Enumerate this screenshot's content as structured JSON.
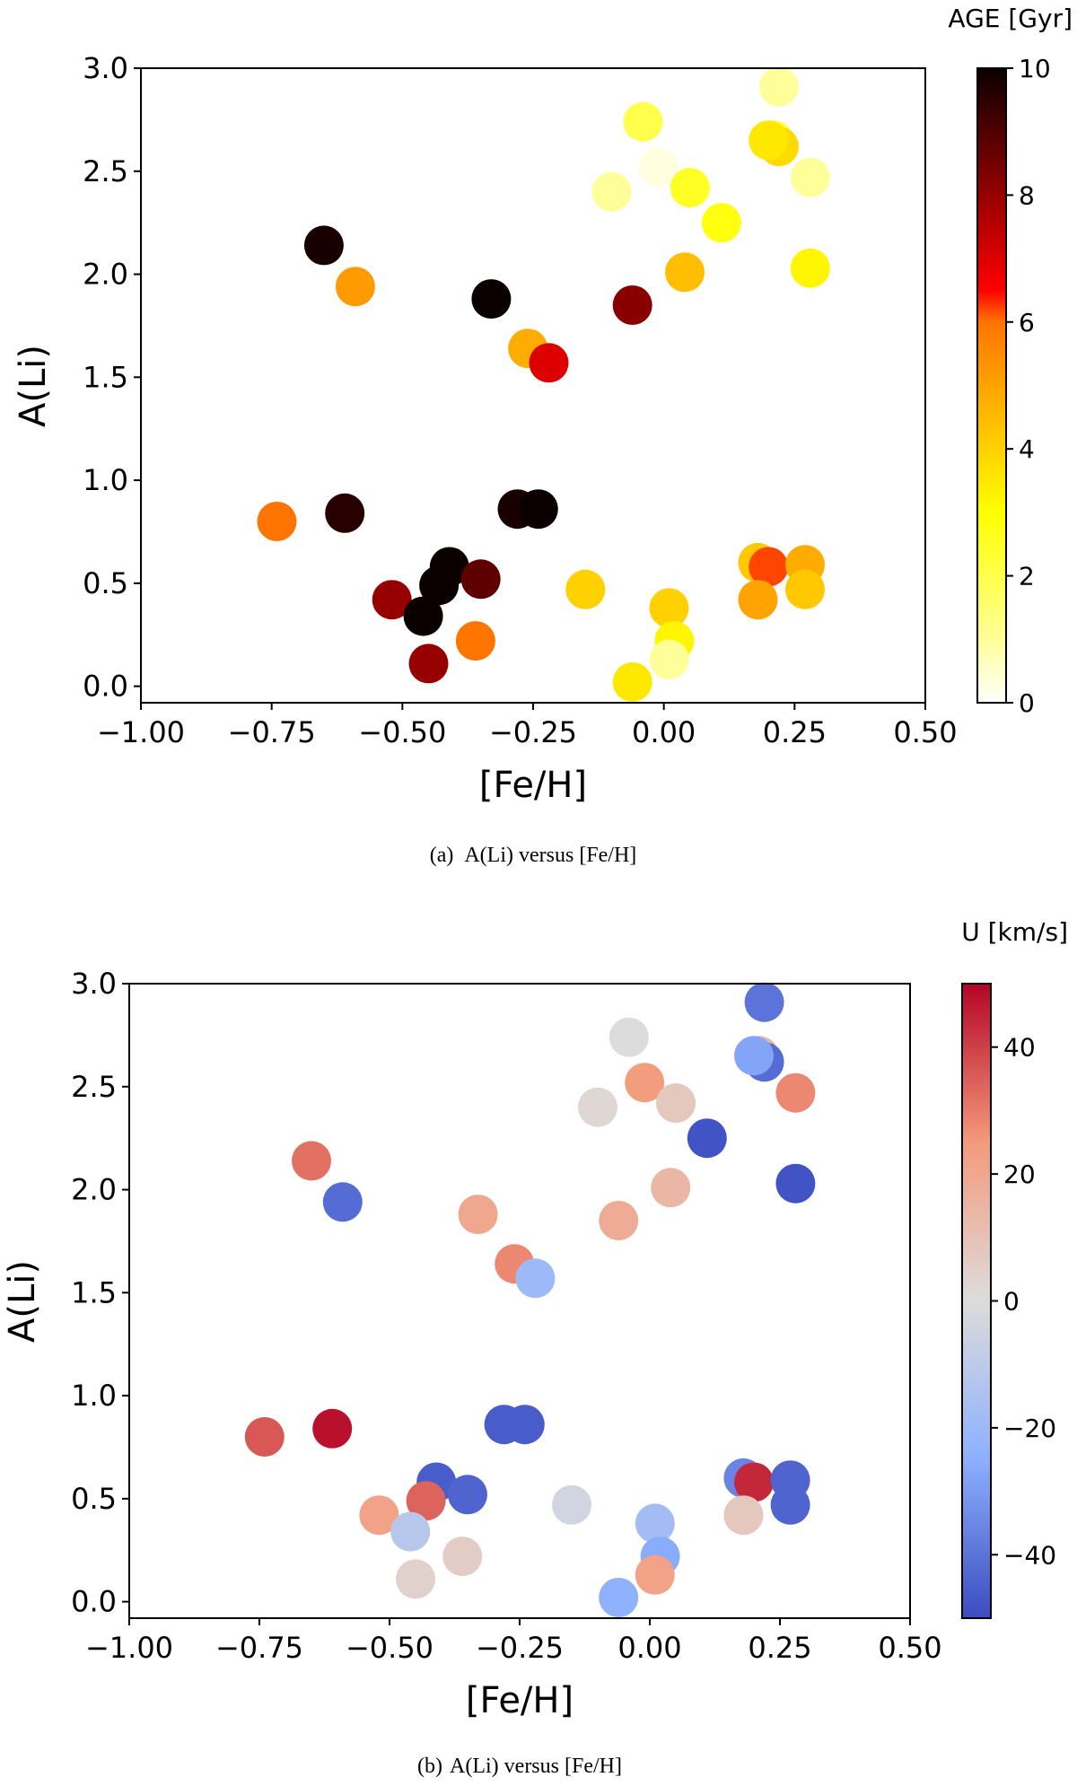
{
  "chart_data": [
    {
      "type": "scatter",
      "panel_label": "(a)",
      "caption": "A(Li) versus [Fe/H]",
      "xlabel": "[Fe/H]",
      "ylabel": "A(Li)",
      "xlim": [
        -1.0,
        0.5
      ],
      "ylim": [
        -0.08,
        3.0
      ],
      "xticks": [
        -1.0,
        -0.75,
        -0.5,
        -0.25,
        0.0,
        0.25,
        0.5
      ],
      "xtick_labels": [
        "−1.00",
        "−0.75",
        "−0.50",
        "−0.25",
        "0.00",
        "0.25",
        "0.50"
      ],
      "yticks": [
        0.0,
        0.5,
        1.0,
        1.5,
        2.0,
        2.5,
        3.0
      ],
      "ytick_labels": [
        "0.0",
        "0.5",
        "1.0",
        "1.5",
        "2.0",
        "2.5",
        "3.0"
      ],
      "colorbar": {
        "label": "AGE [Gyr]",
        "colormap": "hot_r",
        "range": [
          0,
          10
        ],
        "ticks": [
          0,
          2,
          4,
          6,
          8,
          10
        ],
        "tick_labels": [
          "0",
          "2",
          "4",
          "6",
          "8",
          "10"
        ]
      },
      "points": [
        {
          "x": -0.65,
          "y": 2.14,
          "c": 9.8
        },
        {
          "x": -0.59,
          "y": 1.94,
          "c": 5.2
        },
        {
          "x": -0.33,
          "y": 1.88,
          "c": 10.0
        },
        {
          "x": -0.26,
          "y": 1.64,
          "c": 4.8
        },
        {
          "x": -0.22,
          "y": 1.57,
          "c": 7.0
        },
        {
          "x": -0.06,
          "y": 1.85,
          "c": 8.2
        },
        {
          "x": -0.74,
          "y": 0.8,
          "c": 6.0
        },
        {
          "x": -0.61,
          "y": 0.84,
          "c": 9.6
        },
        {
          "x": -0.28,
          "y": 0.86,
          "c": 9.8
        },
        {
          "x": -0.24,
          "y": 0.86,
          "c": 10.0
        },
        {
          "x": -0.52,
          "y": 0.42,
          "c": 8.0
        },
        {
          "x": -0.41,
          "y": 0.58,
          "c": 10.0
        },
        {
          "x": -0.43,
          "y": 0.49,
          "c": 10.0
        },
        {
          "x": -0.35,
          "y": 0.52,
          "c": 8.8
        },
        {
          "x": -0.46,
          "y": 0.34,
          "c": 10.0
        },
        {
          "x": -0.45,
          "y": 0.11,
          "c": 8.0
        },
        {
          "x": -0.36,
          "y": 0.22,
          "c": 6.0
        },
        {
          "x": -0.15,
          "y": 0.47,
          "c": 4.0
        },
        {
          "x": 0.01,
          "y": 0.38,
          "c": 4.0
        },
        {
          "x": 0.02,
          "y": 0.22,
          "c": 3.2
        },
        {
          "x": 0.01,
          "y": 0.13,
          "c": 1.0
        },
        {
          "x": -0.06,
          "y": 0.02,
          "c": 3.5
        },
        {
          "x": 0.18,
          "y": 0.6,
          "c": 4.2
        },
        {
          "x": 0.2,
          "y": 0.58,
          "c": 6.2
        },
        {
          "x": 0.27,
          "y": 0.59,
          "c": 4.8
        },
        {
          "x": 0.18,
          "y": 0.42,
          "c": 5.0
        },
        {
          "x": 0.27,
          "y": 0.47,
          "c": 4.2
        },
        {
          "x": -0.04,
          "y": 2.74,
          "c": 2.0
        },
        {
          "x": -0.01,
          "y": 2.52,
          "c": 0.3
        },
        {
          "x": -0.1,
          "y": 2.4,
          "c": 1.0
        },
        {
          "x": 0.05,
          "y": 2.42,
          "c": 2.5
        },
        {
          "x": 0.11,
          "y": 2.25,
          "c": 2.8
        },
        {
          "x": 0.04,
          "y": 2.01,
          "c": 4.4
        },
        {
          "x": 0.22,
          "y": 2.91,
          "c": 1.0
        },
        {
          "x": 0.21,
          "y": 2.65,
          "c": 2.2
        },
        {
          "x": 0.22,
          "y": 2.62,
          "c": 3.8
        },
        {
          "x": 0.2,
          "y": 2.65,
          "c": 3.5
        },
        {
          "x": 0.28,
          "y": 2.47,
          "c": 1.0
        },
        {
          "x": 0.28,
          "y": 2.03,
          "c": 3.2
        }
      ]
    },
    {
      "type": "scatter",
      "panel_label": "(b)",
      "caption": "A(Li) versus [Fe/H]",
      "xlabel": "[Fe/H]",
      "ylabel": "A(Li)",
      "xlim": [
        -1.0,
        0.5
      ],
      "ylim": [
        -0.08,
        3.0
      ],
      "xticks": [
        -1.0,
        -0.75,
        -0.5,
        -0.25,
        0.0,
        0.25,
        0.5
      ],
      "xtick_labels": [
        "−1.00",
        "−0.75",
        "−0.50",
        "−0.25",
        "0.00",
        "0.25",
        "0.50"
      ],
      "yticks": [
        0.0,
        0.5,
        1.0,
        1.5,
        2.0,
        2.5,
        3.0
      ],
      "ytick_labels": [
        "0.0",
        "0.5",
        "1.0",
        "1.5",
        "2.0",
        "2.5",
        "3.0"
      ],
      "colorbar": {
        "label": "U [km/s]",
        "colormap": "coolwarm",
        "range": [
          -50,
          50
        ],
        "ticks": [
          -40,
          -20,
          0,
          20,
          40
        ],
        "tick_labels": [
          "−40",
          "−20",
          "0",
          "20",
          "40"
        ]
      },
      "points": [
        {
          "x": -0.65,
          "y": 2.14,
          "c": 32
        },
        {
          "x": -0.59,
          "y": 1.94,
          "c": -42
        },
        {
          "x": -0.33,
          "y": 1.88,
          "c": 20
        },
        {
          "x": -0.26,
          "y": 1.64,
          "c": 28
        },
        {
          "x": -0.22,
          "y": 1.57,
          "c": -20
        },
        {
          "x": -0.06,
          "y": 1.85,
          "c": 18
        },
        {
          "x": -0.74,
          "y": 0.8,
          "c": 36
        },
        {
          "x": -0.61,
          "y": 0.84,
          "c": 48
        },
        {
          "x": -0.28,
          "y": 0.86,
          "c": -46
        },
        {
          "x": -0.24,
          "y": 0.86,
          "c": -46
        },
        {
          "x": -0.52,
          "y": 0.42,
          "c": 22
        },
        {
          "x": -0.41,
          "y": 0.58,
          "c": -46
        },
        {
          "x": -0.43,
          "y": 0.49,
          "c": 34
        },
        {
          "x": -0.35,
          "y": 0.52,
          "c": -44
        },
        {
          "x": -0.46,
          "y": 0.34,
          "c": -12
        },
        {
          "x": -0.45,
          "y": 0.11,
          "c": 4
        },
        {
          "x": -0.36,
          "y": 0.22,
          "c": 6
        },
        {
          "x": -0.15,
          "y": 0.47,
          "c": -4
        },
        {
          "x": 0.01,
          "y": 0.38,
          "c": -18
        },
        {
          "x": 0.02,
          "y": 0.22,
          "c": -26
        },
        {
          "x": 0.01,
          "y": 0.13,
          "c": 22
        },
        {
          "x": -0.06,
          "y": 0.02,
          "c": -24
        },
        {
          "x": 0.18,
          "y": 0.6,
          "c": -36
        },
        {
          "x": 0.2,
          "y": 0.58,
          "c": 44
        },
        {
          "x": 0.27,
          "y": 0.59,
          "c": -44
        },
        {
          "x": 0.18,
          "y": 0.42,
          "c": 8
        },
        {
          "x": 0.27,
          "y": 0.47,
          "c": -44
        },
        {
          "x": -0.04,
          "y": 2.74,
          "c": 0
        },
        {
          "x": -0.01,
          "y": 2.52,
          "c": 24
        },
        {
          "x": -0.1,
          "y": 2.4,
          "c": 2
        },
        {
          "x": 0.05,
          "y": 2.42,
          "c": 8
        },
        {
          "x": 0.11,
          "y": 2.25,
          "c": -48
        },
        {
          "x": 0.04,
          "y": 2.01,
          "c": 14
        },
        {
          "x": 0.22,
          "y": 2.91,
          "c": -40
        },
        {
          "x": 0.21,
          "y": 2.65,
          "c": 14
        },
        {
          "x": 0.22,
          "y": 2.62,
          "c": -42
        },
        {
          "x": 0.2,
          "y": 2.65,
          "c": -28
        },
        {
          "x": 0.28,
          "y": 2.47,
          "c": 28
        },
        {
          "x": 0.28,
          "y": 2.03,
          "c": -48
        }
      ]
    }
  ]
}
